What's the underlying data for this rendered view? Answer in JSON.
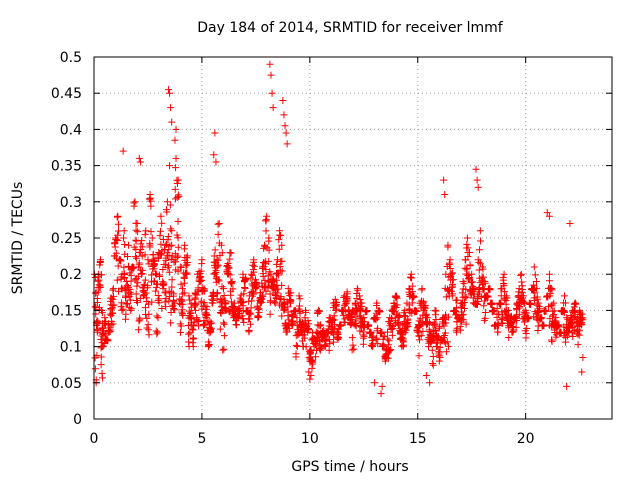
{
  "chart_data": {
    "type": "scatter",
    "title": "Day 184 of 2014, SRMTID for receiver lmmf",
    "xlabel": "GPS time / hours",
    "ylabel": "SRMTID / TECUs",
    "xlim": [
      0,
      24
    ],
    "ylim": [
      0,
      0.5
    ],
    "xticks": [
      "0",
      "5",
      "10",
      "15",
      "20"
    ],
    "yticks": [
      "0",
      "0.05",
      "0.1",
      "0.15",
      "0.2",
      "0.25",
      "0.3",
      "0.35",
      "0.4",
      "0.45",
      "0.5"
    ],
    "grid": true,
    "marker": "plus",
    "series": [
      {
        "name": "SRMTID",
        "color": "#ff0000",
        "x": [
          0.0,
          0.1,
          0.15,
          0.2,
          0.3,
          0.35,
          0.4,
          0.5,
          0.6,
          0.7,
          0.8,
          0.9,
          1.0,
          1.1,
          1.2,
          1.3,
          1.4,
          1.5,
          1.6,
          1.7,
          1.8,
          1.9,
          2.0,
          2.1,
          2.2,
          2.3,
          2.4,
          2.5,
          2.6,
          2.7,
          2.8,
          2.9,
          3.0,
          3.1,
          3.2,
          3.3,
          3.4,
          3.5,
          3.6,
          3.7,
          3.8,
          3.9,
          4.0,
          4.1,
          4.2,
          4.3,
          4.4,
          4.5,
          4.6,
          4.7,
          4.8,
          4.9,
          5.0,
          5.1,
          5.2,
          5.3,
          5.4,
          5.5,
          5.6,
          5.7,
          5.8,
          5.9,
          6.0,
          6.1,
          6.2,
          6.3,
          6.4,
          6.5,
          6.6,
          6.7,
          6.8,
          6.9,
          7.0,
          7.1,
          7.2,
          7.3,
          7.4,
          7.5,
          7.6,
          7.7,
          7.8,
          7.9,
          8.0,
          8.1,
          8.2,
          8.3,
          8.4,
          8.5,
          8.6,
          8.7,
          8.8,
          8.9,
          9.0,
          9.1,
          9.2,
          9.3,
          9.4,
          9.5,
          9.6,
          9.7,
          9.8,
          9.9,
          10.0,
          10.1,
          10.2,
          10.3,
          10.4,
          10.5,
          10.6,
          10.7,
          10.8,
          10.9,
          11.0,
          11.1,
          11.2,
          11.3,
          11.4,
          11.5,
          11.6,
          11.7,
          11.8,
          11.9,
          12.0,
          12.1,
          12.2,
          12.3,
          12.4,
          12.5,
          12.6,
          12.7,
          12.8,
          12.9,
          13.0,
          13.1,
          13.2,
          13.3,
          13.4,
          13.5,
          13.6,
          13.7,
          13.8,
          13.9,
          14.0,
          14.1,
          14.2,
          14.3,
          14.4,
          14.5,
          14.6,
          14.7,
          14.8,
          14.9,
          15.0,
          15.1,
          15.2,
          15.3,
          15.4,
          15.5,
          15.6,
          15.7,
          15.8,
          15.9,
          16.0,
          16.1,
          16.2,
          16.3,
          16.4,
          16.5,
          16.6,
          16.7,
          16.8,
          16.9,
          17.0,
          17.1,
          17.2,
          17.3,
          17.4,
          17.5,
          17.6,
          17.7,
          17.8,
          17.9,
          18.0,
          18.1,
          18.2,
          18.3,
          18.4,
          18.5,
          18.6,
          18.7,
          18.8,
          18.9,
          19.0,
          19.1,
          19.2,
          19.3,
          19.4,
          19.5,
          19.6,
          19.7,
          19.8,
          19.9,
          20.0,
          20.1,
          20.2,
          20.3,
          20.4,
          20.5,
          20.6,
          20.7,
          20.8,
          20.9,
          21.0,
          21.1,
          21.2,
          21.3,
          21.4,
          21.5,
          21.6,
          21.7,
          21.8,
          21.9,
          22.0,
          22.1,
          22.2,
          22.3,
          22.4,
          22.5,
          22.6,
          22.7,
          0.05,
          0.12,
          0.2,
          0.22,
          0.15,
          0.1,
          0.14,
          0.11,
          0.12,
          0.13,
          0.18,
          0.25,
          0.28,
          0.22,
          0.2,
          0.26,
          0.19,
          0.24,
          0.15,
          0.21,
          0.3,
          0.27,
          0.23,
          0.2,
          0.17,
          0.26,
          0.22,
          0.31,
          0.25,
          0.19,
          0.2,
          0.23,
          0.28,
          0.18,
          0.24,
          0.3,
          0.35,
          0.26,
          0.22,
          0.36,
          0.33,
          0.21,
          0.18,
          0.24,
          0.2,
          0.17,
          0.13,
          0.1,
          0.15,
          0.2,
          0.19,
          0.22,
          0.18,
          0.14,
          0.1,
          0.12,
          0.16,
          0.2,
          0.22,
          0.27,
          0.24,
          0.18,
          0.15,
          0.2,
          0.23,
          0.19,
          0.16,
          0.13,
          0.14,
          0.16,
          0.2,
          0.18,
          0.15,
          0.17,
          0.2,
          0.22,
          0.18,
          0.14,
          0.16,
          0.21,
          0.24,
          0.28,
          0.25,
          0.2,
          0.18,
          0.16,
          0.22,
          0.26,
          0.24,
          0.15,
          0.12,
          0.18,
          0.16,
          0.13,
          0.15,
          0.14,
          0.17,
          0.12,
          0.1,
          0.15,
          0.12,
          0.08,
          0.07,
          0.1,
          0.12,
          0.15,
          0.13,
          0.11,
          0.1,
          0.12,
          0.14,
          0.12,
          0.16,
          0.15,
          0.11,
          0.13,
          0.15,
          0.17,
          0.16,
          0.14,
          0.13,
          0.15,
          0.16,
          0.18,
          0.17,
          0.16,
          0.14,
          0.15,
          0.13,
          0.12,
          0.1,
          0.14,
          0.16,
          0.15,
          0.12,
          0.1,
          0.08,
          0.12,
          0.14,
          0.15,
          0.16,
          0.17,
          0.13,
          0.11,
          0.13,
          0.15,
          0.16,
          0.18,
          0.2,
          0.17,
          0.15,
          0.12,
          0.16,
          0.18,
          0.15,
          0.13,
          0.1,
          0.12,
          0.13,
          0.15,
          0.1,
          0.08,
          0.11,
          0.14,
          0.2,
          0.24,
          0.22,
          0.17,
          0.15,
          0.12,
          0.14,
          0.16,
          0.19,
          0.22,
          0.25,
          0.23,
          0.2,
          0.18,
          0.16,
          0.22,
          0.26,
          0.21,
          0.19,
          0.17,
          0.18,
          0.16,
          0.15,
          0.13,
          0.12,
          0.16,
          0.18,
          0.2,
          0.17,
          0.15,
          0.13,
          0.12,
          0.14,
          0.16,
          0.18,
          0.2,
          0.17,
          0.15,
          0.14,
          0.16,
          0.18,
          0.21,
          0.19,
          0.16,
          0.14,
          0.13,
          0.15,
          0.17,
          0.2,
          0.18,
          0.16,
          0.14,
          0.13,
          0.12,
          0.15,
          0.17,
          0.14,
          0.12,
          0.13,
          0.15,
          0.16,
          0.14,
          0.15,
          0.13,
          0.14,
          0.12,
          0.16,
          0.14,
          0.18,
          0.19,
          0.1,
          0.13,
          0.13,
          0.12,
          0.14,
          0.17,
          0.16,
          0.24,
          0.22,
          0.23,
          0.18,
          0.21,
          0.17,
          0.2,
          0.2,
          0.22,
          0.25,
          0.21,
          0.18,
          0.24,
          0.19,
          0.2,
          0.17,
          0.28,
          0.21,
          0.22,
          0.16,
          0.19,
          0.21,
          0.23,
          0.2,
          0.26,
          0.24,
          0.19,
          0.19,
          0.28,
          0.25,
          0.16,
          0.17,
          0.2,
          0.23,
          0.14,
          0.16,
          0.13,
          0.18,
          0.16,
          0.21,
          0.19,
          0.16,
          0.16,
          0.13,
          0.14,
          0.18,
          0.23,
          0.2,
          0.22,
          0.18,
          0.14,
          0.17,
          0.22,
          0.19,
          0.17,
          0.15,
          0.15,
          0.16,
          0.18,
          0.17,
          0.2,
          0.16,
          0.15,
          0.18,
          0.2,
          0.2,
          0.16,
          0.18,
          0.19,
          0.21,
          0.23,
          0.22,
          0.18,
          0.2,
          0.19,
          0.2,
          0.21,
          0.19,
          0.17,
          0.14,
          0.15,
          0.18,
          0.15,
          0.16,
          0.12,
          0.15,
          0.14,
          0.13,
          0.13,
          0.14,
          0.1,
          0.11,
          0.12,
          0.11,
          0.13,
          0.12,
          0.13,
          0.12,
          0.13,
          0.12,
          0.14,
          0.14,
          0.17,
          0.13,
          0.14,
          0.16,
          0.15,
          0.18,
          0.16,
          0.15,
          0.13,
          0.15,
          0.16,
          0.15,
          0.15,
          0.13,
          0.16,
          0.14,
          0.13,
          0.12,
          0.15,
          0.14,
          0.16,
          0.13,
          0.12,
          0.1,
          0.11,
          0.12,
          0.14,
          0.15,
          0.16,
          0.15,
          0.13,
          0.12,
          0.14,
          0.15,
          0.17,
          0.18,
          0.18,
          0.16,
          0.14,
          0.13,
          0.15,
          0.17,
          0.15,
          0.14,
          0.12,
          0.11,
          0.14,
          0.12,
          0.12,
          0.12,
          0.13,
          0.15,
          0.17,
          0.2,
          0.2,
          0.16,
          0.16,
          0.15,
          0.15,
          0.17,
          0.18,
          0.2,
          0.21,
          0.19,
          0.18,
          0.17,
          0.19,
          0.21,
          0.2,
          0.17,
          0.18,
          0.19,
          0.17,
          0.16,
          0.14,
          0.15,
          0.17,
          0.16,
          0.18,
          0.16,
          0.14,
          0.15,
          0.14,
          0.15,
          0.15,
          0.17,
          0.18,
          0.16,
          0.14,
          0.15,
          0.17,
          0.19,
          0.18,
          0.17,
          0.15,
          0.15,
          0.14,
          0.16,
          0.18,
          0.17,
          0.15,
          0.15,
          0.13,
          0.14,
          0.13,
          0.16,
          0.15,
          0.13,
          0.14,
          0.15,
          0.14,
          0.16,
          0.13,
          0.14,
          0.15,
          0.13
        ]
      }
    ]
  }
}
